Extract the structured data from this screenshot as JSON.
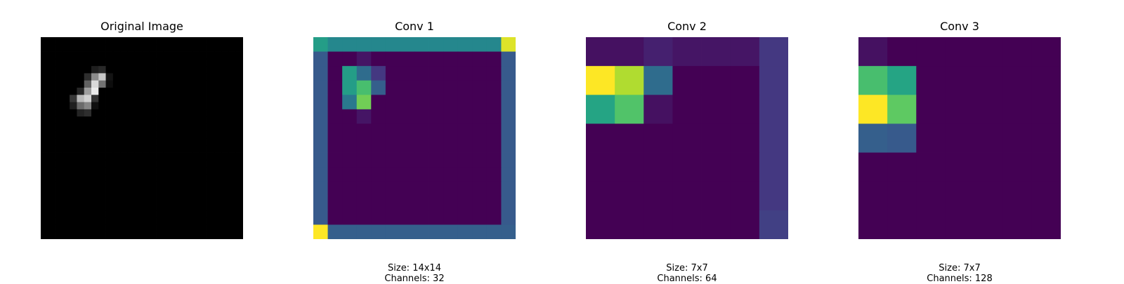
{
  "figure": {
    "panels": [
      {
        "title": "Original Image",
        "size_label": "",
        "channels_label": ""
      },
      {
        "title": "Conv 1",
        "size_label": "Size: 14x14",
        "channels_label": "Channels: 32"
      },
      {
        "title": "Conv 2",
        "size_label": "Size: 7x7",
        "channels_label": "Channels: 64"
      },
      {
        "title": "Conv 3",
        "size_label": "Size: 7x7",
        "channels_label": "Channels: 128"
      }
    ]
  },
  "chart_data": [
    {
      "type": "heatmap",
      "title": "Original Image",
      "colormap": "gray",
      "grid": false,
      "size": [
        28,
        28
      ],
      "nonzero": [
        {
          "r": 4,
          "c": 7,
          "v": 0.12
        },
        {
          "r": 4,
          "c": 8,
          "v": 0.16
        },
        {
          "r": 5,
          "c": 6,
          "v": 0.18
        },
        {
          "r": 5,
          "c": 7,
          "v": 0.55
        },
        {
          "r": 5,
          "c": 8,
          "v": 0.78
        },
        {
          "r": 5,
          "c": 9,
          "v": 0.08
        },
        {
          "r": 6,
          "c": 6,
          "v": 0.38
        },
        {
          "r": 6,
          "c": 7,
          "v": 0.85
        },
        {
          "r": 6,
          "c": 8,
          "v": 0.45
        },
        {
          "r": 6,
          "c": 9,
          "v": 0.05
        },
        {
          "r": 7,
          "c": 5,
          "v": 0.15
        },
        {
          "r": 7,
          "c": 6,
          "v": 0.62
        },
        {
          "r": 7,
          "c": 7,
          "v": 0.92
        },
        {
          "r": 8,
          "c": 4,
          "v": 0.22
        },
        {
          "r": 8,
          "c": 5,
          "v": 0.72
        },
        {
          "r": 8,
          "c": 6,
          "v": 0.82
        },
        {
          "r": 8,
          "c": 7,
          "v": 0.2
        },
        {
          "r": 9,
          "c": 4,
          "v": 0.12
        },
        {
          "r": 9,
          "c": 5,
          "v": 0.42
        },
        {
          "r": 9,
          "c": 6,
          "v": 0.52
        },
        {
          "r": 9,
          "c": 7,
          "v": 0.06
        },
        {
          "r": 10,
          "c": 5,
          "v": 0.14
        },
        {
          "r": 10,
          "c": 6,
          "v": 0.18
        }
      ]
    },
    {
      "type": "heatmap",
      "title": "Conv 1",
      "colormap": "viridis",
      "grid": false,
      "size": [
        14,
        14
      ],
      "base": 0.0,
      "borders": {
        "top": 0.46,
        "left": 0.28,
        "right": 0.28,
        "bottom": 0.3
      },
      "corners": {
        "top_left": 0.55,
        "top_right": 0.95,
        "bottom_left": 1.0,
        "bottom_right": 0.3
      },
      "cells": [
        {
          "r": 1,
          "c": 3,
          "v": 0.05
        },
        {
          "r": 2,
          "c": 2,
          "v": 0.55
        },
        {
          "r": 2,
          "c": 3,
          "v": 0.35
        },
        {
          "r": 2,
          "c": 4,
          "v": 0.15
        },
        {
          "r": 3,
          "c": 2,
          "v": 0.55
        },
        {
          "r": 3,
          "c": 3,
          "v": 0.7
        },
        {
          "r": 3,
          "c": 4,
          "v": 0.3
        },
        {
          "r": 4,
          "c": 2,
          "v": 0.4
        },
        {
          "r": 4,
          "c": 3,
          "v": 0.78
        },
        {
          "r": 5,
          "c": 3,
          "v": 0.05
        }
      ]
    },
    {
      "type": "heatmap",
      "title": "Conv 2",
      "colormap": "viridis",
      "grid": false,
      "size": [
        7,
        7
      ],
      "values": [
        [
          0.04,
          0.04,
          0.08,
          0.05,
          0.05,
          0.05,
          0.15
        ],
        [
          1.0,
          0.88,
          0.35,
          0.0,
          0.0,
          0.0,
          0.15
        ],
        [
          0.58,
          0.72,
          0.04,
          0.0,
          0.0,
          0.0,
          0.15
        ],
        [
          0.0,
          0.0,
          0.0,
          0.0,
          0.0,
          0.0,
          0.15
        ],
        [
          0.0,
          0.0,
          0.0,
          0.0,
          0.0,
          0.0,
          0.15
        ],
        [
          0.0,
          0.0,
          0.0,
          0.0,
          0.0,
          0.0,
          0.15
        ],
        [
          0.0,
          0.0,
          0.0,
          0.0,
          0.0,
          0.0,
          0.18
        ]
      ]
    },
    {
      "type": "heatmap",
      "title": "Conv 3",
      "colormap": "viridis",
      "grid": false,
      "size": [
        7,
        7
      ],
      "values": [
        [
          0.04,
          0.0,
          0.0,
          0.0,
          0.0,
          0.0,
          0.0
        ],
        [
          0.7,
          0.58,
          0.0,
          0.0,
          0.0,
          0.0,
          0.0
        ],
        [
          1.0,
          0.75,
          0.0,
          0.0,
          0.0,
          0.0,
          0.0
        ],
        [
          0.3,
          0.28,
          0.0,
          0.0,
          0.0,
          0.0,
          0.0
        ],
        [
          0.0,
          0.0,
          0.0,
          0.0,
          0.0,
          0.0,
          0.0
        ],
        [
          0.0,
          0.0,
          0.0,
          0.0,
          0.0,
          0.0,
          0.0
        ],
        [
          0.0,
          0.0,
          0.0,
          0.0,
          0.0,
          0.0,
          0.0
        ]
      ]
    }
  ]
}
